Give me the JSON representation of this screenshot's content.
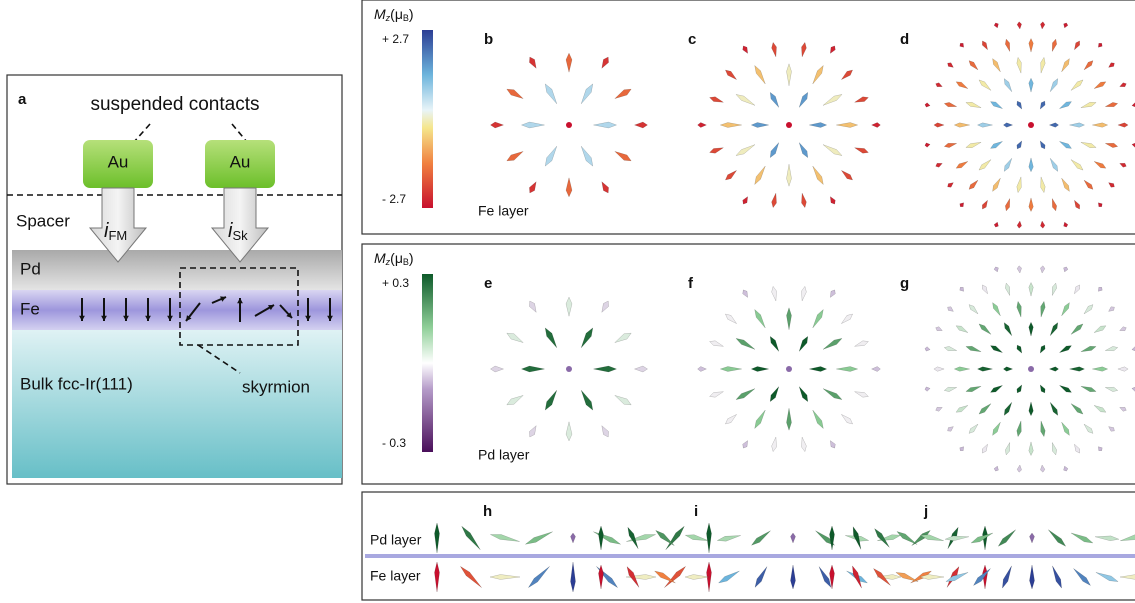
{
  "panel_a": {
    "label": "a",
    "contacts_label": "suspended contacts",
    "contact_left": "Au",
    "contact_right": "Au",
    "spacer": "Spacer",
    "current_fm": {
      "main": "i",
      "sub": "FM"
    },
    "current_sk": {
      "main": "i",
      "sub": "Sk"
    },
    "layer_pd": "Pd",
    "layer_fe": "Fe",
    "bulk": "Bulk fcc-Ir(111)",
    "skyrmion": "skyrmion"
  },
  "fe_panel": {
    "colorbar_title": {
      "symbol": "M",
      "symbol_sub": "z",
      "unit": "(μ",
      "unit_sub": "B",
      "unit_end": ")"
    },
    "max": "+ 2.7",
    "min": "- 2.7",
    "layer": "Fe layer",
    "labels": [
      "b",
      "c",
      "d"
    ]
  },
  "pd_panel": {
    "colorbar_title": {
      "symbol": "M",
      "symbol_sub": "z",
      "unit": "(μ",
      "unit_sub": "B",
      "unit_end": ")"
    },
    "max": "+ 0.3",
    "min": "- 0.3",
    "layer": "Pd layer",
    "labels": [
      "e",
      "f",
      "g"
    ]
  },
  "side_panel": {
    "top_layer": "Pd layer",
    "bottom_layer": "Fe layer",
    "labels": [
      "h",
      "i",
      "j"
    ]
  }
}
